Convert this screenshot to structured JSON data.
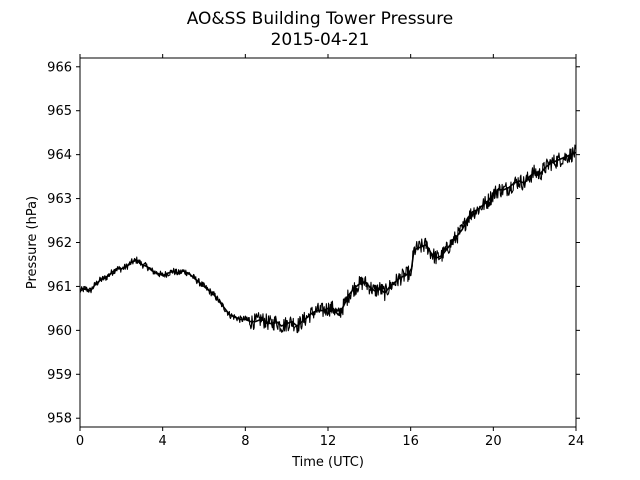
{
  "chart_data": {
    "type": "line",
    "title": "AO&SS Building Tower Pressure",
    "subtitle": "2015-04-21",
    "xlabel": "Time (UTC)",
    "ylabel": "Pressure (hPa)",
    "xlim": [
      0,
      24
    ],
    "ylim": [
      957.8,
      966.2
    ],
    "xticks": [
      0,
      4,
      8,
      12,
      16,
      20,
      24
    ],
    "yticks": [
      958,
      959,
      960,
      961,
      962,
      963,
      964,
      965,
      966
    ],
    "grid": false,
    "legend": "none",
    "line_color": "#000000",
    "series": [
      {
        "x": [
          0,
          0.25,
          0.5,
          0.75,
          1.0,
          1.25,
          1.5,
          1.75,
          2.0,
          2.25,
          2.5,
          2.75,
          3.0,
          3.25,
          3.5,
          3.75,
          4.0,
          4.25,
          4.5,
          4.75,
          5.0,
          5.25,
          5.5,
          5.75,
          6.0,
          6.25,
          6.5,
          6.75,
          7.0,
          7.25,
          7.5,
          7.75,
          8.0,
          8.25,
          8.5,
          8.75,
          9.0,
          9.25,
          9.5,
          9.75,
          10.0,
          10.25,
          10.5,
          10.75,
          11.0,
          11.25,
          11.5,
          11.75,
          12.0,
          12.25,
          12.5,
          12.75,
          13.0,
          13.25,
          13.5,
          13.75,
          14.0,
          14.25,
          14.5,
          14.75,
          15.0,
          15.25,
          15.5,
          15.75,
          15.9,
          16.0,
          16.15,
          16.25,
          16.5,
          16.75,
          17.0,
          17.25,
          17.5,
          17.75,
          18.0,
          18.25,
          18.5,
          18.75,
          19.0,
          19.25,
          19.5,
          19.75,
          20.0,
          20.25,
          20.5,
          20.75,
          21.0,
          21.25,
          21.5,
          21.75,
          22.0,
          22.25,
          22.5,
          22.75,
          23.0,
          23.25,
          23.5,
          23.75,
          24.0
        ],
        "y": [
          960.9,
          960.95,
          960.9,
          961.05,
          961.15,
          961.2,
          961.3,
          961.4,
          961.4,
          961.45,
          961.55,
          961.6,
          961.5,
          961.45,
          961.35,
          961.3,
          961.25,
          961.3,
          961.35,
          961.3,
          961.35,
          961.3,
          961.2,
          961.1,
          961.0,
          960.9,
          960.8,
          960.65,
          960.5,
          960.35,
          960.3,
          960.25,
          960.25,
          960.2,
          960.2,
          960.25,
          960.2,
          960.15,
          960.2,
          960.1,
          960.15,
          960.2,
          960.1,
          960.2,
          960.3,
          960.4,
          960.45,
          960.45,
          960.5,
          960.5,
          960.35,
          960.55,
          960.8,
          960.95,
          961.05,
          961.1,
          961.0,
          960.9,
          960.95,
          960.85,
          961.0,
          961.1,
          961.2,
          961.25,
          961.3,
          961.25,
          961.8,
          961.85,
          961.9,
          961.95,
          961.75,
          961.65,
          961.7,
          961.85,
          962.0,
          962.15,
          962.3,
          962.55,
          962.7,
          962.75,
          962.85,
          962.95,
          963.1,
          963.2,
          963.2,
          963.25,
          963.35,
          963.4,
          963.35,
          963.5,
          963.6,
          963.55,
          963.7,
          963.8,
          963.85,
          963.9,
          963.95,
          964.0,
          964.05
        ]
      }
    ]
  }
}
